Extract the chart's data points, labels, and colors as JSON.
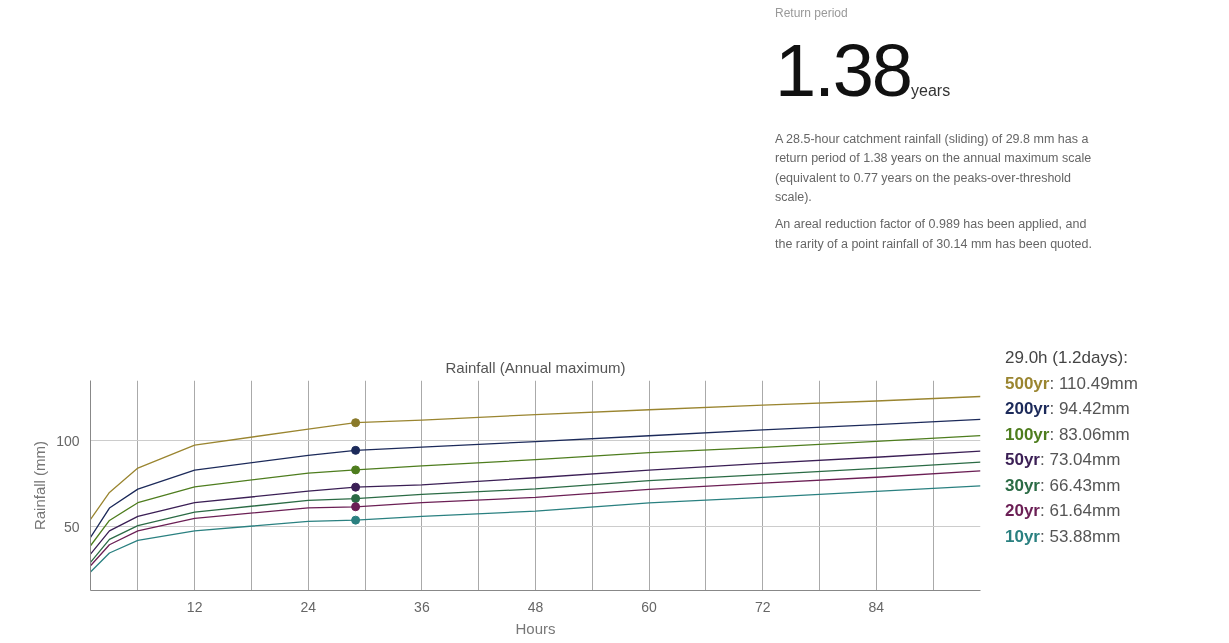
{
  "chart_data": {
    "type": "line",
    "title": "Rainfall (Annual maximum)",
    "xlabel": "Hours",
    "ylabel": "Rainfall (mm)",
    "legend_title": "29.0h (1.2days):",
    "legend": "right",
    "grid": true,
    "xlim": [
      1,
      95
    ],
    "ylim": [
      13,
      135
    ],
    "xticks": [
      {
        "value": 6,
        "label": null
      },
      12,
      {
        "value": 18,
        "label": null
      },
      24,
      {
        "value": 30,
        "label": null
      },
      36,
      {
        "value": 42,
        "label": null
      },
      48,
      {
        "value": 54,
        "label": null
      },
      60,
      {
        "value": 66,
        "label": null
      },
      72,
      {
        "value": 78,
        "label": null
      },
      84,
      {
        "value": 90,
        "label": null
      }
    ],
    "yticks": [
      50,
      100
    ],
    "x": [
      1,
      3,
      6,
      12,
      24,
      29,
      36,
      48,
      60,
      72,
      84,
      95
    ],
    "annotations": [
      "Return period",
      "1.38",
      "years",
      "A 28.5-hour catchment rainfall (sliding) of 29.8 mm has a return period of 1.38 years on the annual maximum scale (equivalent to 0.77 years on the peaks-over-threshold scale).",
      "An areal reduction factor of 0.989 has been applied, and the rarity of a point rainfall of 30.14 mm has been quoted.",
      ": 110.49mm",
      ": 94.42mm",
      ": 83.06mm",
      ": 73.04mm",
      ": 66.43mm",
      ": 61.64mm",
      ": 53.88mm"
    ],
    "series": [
      {
        "name": "500yr",
        "color": "#9a8530",
        "values": [
          54.3,
          70,
          84.1,
          97.5,
          106.7,
          110.5,
          112,
          115.2,
          118,
          120.7,
          123.1,
          125.7
        ]
      },
      {
        "name": "200yr",
        "color": "#1c2a5a",
        "values": [
          43.9,
          60.9,
          71.9,
          82.9,
          91.5,
          94.4,
          96.3,
          99.5,
          102.9,
          106.3,
          109.4,
          112.4
        ]
      },
      {
        "name": "100yr",
        "color": "#4e7d1e",
        "values": [
          39,
          53.7,
          64,
          73.2,
          81.2,
          83.1,
          85.4,
          89,
          93.1,
          96.2,
          99.6,
          103
        ]
      },
      {
        "name": "50yr",
        "color": "#3b1f55",
        "values": [
          34.1,
          47.6,
          56.1,
          64,
          70.7,
          73,
          74.4,
          78.5,
          82.9,
          86.9,
          90.4,
          94
        ]
      },
      {
        "name": "30yr",
        "color": "#2b6b45",
        "values": [
          29.3,
          42.7,
          50.7,
          58.5,
          65.4,
          66.4,
          68.8,
          72,
          76.8,
          80.3,
          83.9,
          87.6
        ]
      },
      {
        "name": "20yr",
        "color": "#6b1f55",
        "values": [
          27.4,
          39.6,
          47.6,
          54.9,
          61,
          61.6,
          64,
          67.1,
          71.8,
          75.4,
          78.8,
          82.5
        ]
      },
      {
        "name": "10yr",
        "color": "#2a8080",
        "values": [
          23.7,
          34.8,
          42.1,
          47.6,
          53.2,
          53.9,
          56.1,
          59.1,
          63.9,
          67.1,
          70.6,
          73.8
        ]
      },
      {
        "type": "scatter",
        "marker": "circle",
        "color": "#8a7a2a",
        "values": [
          null,
          null,
          null,
          null,
          null,
          110.49,
          null,
          null,
          null,
          null,
          null,
          null
        ]
      },
      {
        "type": "scatter",
        "marker": "circle",
        "color": "#1c2a5a",
        "values": [
          null,
          null,
          null,
          null,
          null,
          94.42,
          null,
          null,
          null,
          null,
          null,
          null
        ]
      },
      {
        "type": "scatter",
        "marker": "circle",
        "color": "#4e7d1e",
        "values": [
          null,
          null,
          null,
          null,
          null,
          83.06,
          null,
          null,
          null,
          null,
          null,
          null
        ]
      },
      {
        "type": "scatter",
        "marker": "circle",
        "color": "#3b1f55",
        "values": [
          null,
          null,
          null,
          null,
          null,
          73.04,
          null,
          null,
          null,
          null,
          null,
          null
        ]
      },
      {
        "type": "scatter",
        "marker": "circle",
        "color": "#2b6b45",
        "values": [
          null,
          null,
          null,
          null,
          null,
          66.43,
          null,
          null,
          null,
          null,
          null,
          null
        ]
      },
      {
        "type": "scatter",
        "marker": "circle",
        "color": "#6b1f55",
        "values": [
          null,
          null,
          null,
          null,
          null,
          61.64,
          null,
          null,
          null,
          null,
          null,
          null
        ]
      },
      {
        "type": "scatter",
        "marker": "circle",
        "color": "#2a8080",
        "values": [
          null,
          null,
          null,
          null,
          null,
          53.88,
          null,
          null,
          null,
          null,
          null,
          null
        ]
      }
    ]
  }
}
